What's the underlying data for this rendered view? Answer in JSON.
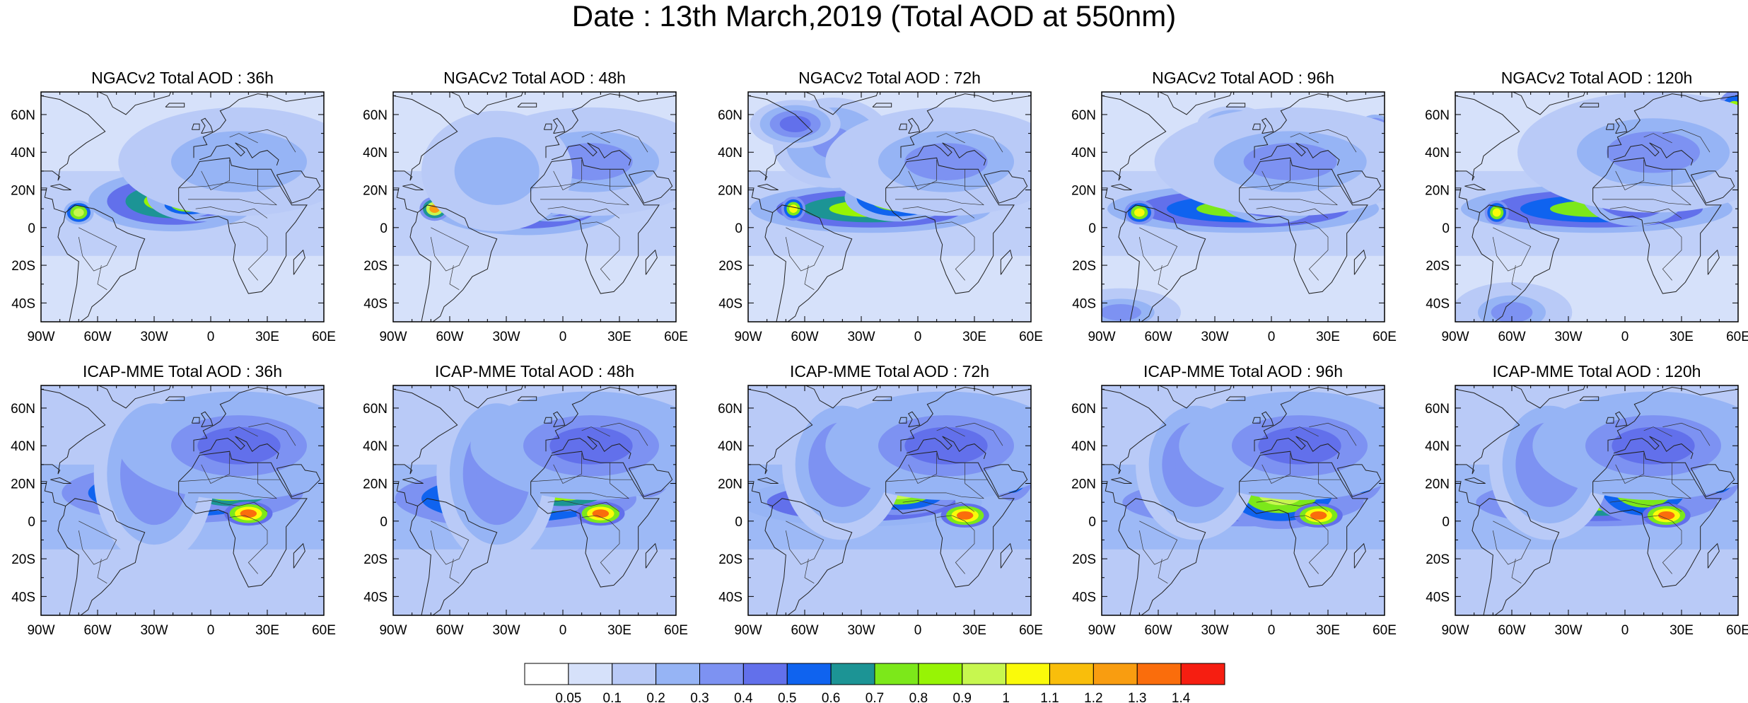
{
  "title": "Date : 13th March,2019 (Total AOD at 550nm)",
  "panels": [
    {
      "title": "NGACv2 Total AOD : 36h",
      "model": "NGACv2",
      "lead": "36h",
      "plumes": [
        [
          -20,
          14,
          28,
          10,
          0.8
        ],
        [
          -5,
          16,
          18,
          8,
          0.9
        ],
        [
          -12,
          12,
          10,
          4,
          0.95
        ],
        [
          -70,
          8,
          5,
          4,
          0.95
        ],
        [
          40,
          40,
          15,
          12,
          0.4
        ],
        [
          15,
          35,
          40,
          18,
          0.25
        ]
      ]
    },
    {
      "title": "NGACv2 Total AOD : 48h",
      "model": "NGACv2",
      "lead": "48h",
      "plumes": [
        [
          -20,
          12,
          32,
          10,
          0.8
        ],
        [
          -5,
          16,
          18,
          8,
          0.9
        ],
        [
          -12,
          12,
          10,
          4,
          0.9
        ],
        [
          -68,
          10,
          5,
          4,
          1.25
        ],
        [
          15,
          35,
          40,
          18,
          0.3
        ],
        [
          -35,
          30,
          25,
          20,
          0.25
        ]
      ]
    },
    {
      "title": "NGACv2 Total AOD : 72h",
      "model": "NGACv2",
      "lead": "72h",
      "plumes": [
        [
          -25,
          10,
          40,
          8,
          0.8
        ],
        [
          -10,
          16,
          18,
          8,
          0.95
        ],
        [
          -66,
          10,
          4,
          4,
          1.0
        ],
        [
          -45,
          45,
          20,
          15,
          0.35
        ],
        [
          15,
          35,
          40,
          18,
          0.3
        ],
        [
          -65,
          55,
          15,
          8,
          0.4
        ]
      ]
    },
    {
      "title": "NGACv2 Total AOD : 96h",
      "model": "NGACv2",
      "lead": "96h",
      "plumes": [
        [
          -15,
          10,
          45,
          8,
          0.75
        ],
        [
          0,
          18,
          18,
          10,
          0.85
        ],
        [
          -70,
          8,
          5,
          4,
          1.0
        ],
        [
          -20,
          55,
          12,
          6,
          0.5
        ],
        [
          55,
          52,
          6,
          5,
          0.7
        ],
        [
          10,
          35,
          45,
          18,
          0.3
        ],
        [
          -80,
          -45,
          20,
          8,
          0.3
        ]
      ]
    },
    {
      "title": "NGACv2 Total AOD : 120h",
      "model": "NGACv2",
      "lead": "120h",
      "plumes": [
        [
          -15,
          10,
          45,
          8,
          0.75
        ],
        [
          5,
          20,
          18,
          12,
          0.85
        ],
        [
          -68,
          8,
          4,
          4,
          1.0
        ],
        [
          58,
          60,
          6,
          8,
          1.05
        ],
        [
          15,
          40,
          45,
          20,
          0.3
        ],
        [
          -60,
          -45,
          20,
          10,
          0.3
        ]
      ]
    }
  ],
  "panels_icap": [
    {
      "title": "ICAP-MME Total AOD : 36h",
      "model": "ICAP-MME",
      "lead": "36h",
      "plumes": [
        [
          -15,
          15,
          40,
          10,
          0.85
        ],
        [
          10,
          18,
          18,
          8,
          1.05
        ],
        [
          20,
          4,
          8,
          4,
          1.35
        ],
        [
          42,
          35,
          10,
          12,
          1.3
        ],
        [
          -30,
          25,
          20,
          30,
          0.35
        ],
        [
          15,
          40,
          40,
          18,
          0.4
        ]
      ]
    },
    {
      "title": "ICAP-MME Total AOD : 48h",
      "model": "ICAP-MME",
      "lead": "48h",
      "plumes": [
        [
          -25,
          12,
          40,
          10,
          0.85
        ],
        [
          0,
          18,
          20,
          8,
          1.05
        ],
        [
          20,
          4,
          8,
          4,
          1.35
        ],
        [
          45,
          35,
          10,
          14,
          1.0
        ],
        [
          -35,
          25,
          20,
          30,
          0.35
        ],
        [
          15,
          40,
          40,
          18,
          0.4
        ]
      ]
    },
    {
      "title": "ICAP-MME Total AOD : 72h",
      "model": "ICAP-MME",
      "lead": "72h",
      "plumes": [
        [
          -30,
          10,
          40,
          8,
          0.7
        ],
        [
          -10,
          16,
          20,
          8,
          0.95
        ],
        [
          25,
          3,
          8,
          4,
          1.3
        ],
        [
          50,
          30,
          8,
          12,
          0.9
        ],
        [
          -40,
          30,
          20,
          25,
          0.35
        ],
        [
          15,
          40,
          40,
          18,
          0.4
        ]
      ]
    },
    {
      "title": "ICAP-MME Total AOD : 96h",
      "model": "ICAP-MME",
      "lead": "96h",
      "plumes": [
        [
          -15,
          10,
          40,
          8,
          0.75
        ],
        [
          5,
          15,
          22,
          12,
          0.95
        ],
        [
          25,
          3,
          8,
          4,
          1.35
        ],
        [
          48,
          30,
          8,
          12,
          1.0
        ],
        [
          -40,
          30,
          20,
          25,
          0.35
        ],
        [
          15,
          40,
          40,
          18,
          0.4
        ]
      ]
    },
    {
      "title": "ICAP-MME Total AOD : 120h",
      "model": "ICAP-MME",
      "lead": "120h",
      "plumes": [
        [
          -15,
          10,
          40,
          8,
          0.8
        ],
        [
          10,
          18,
          18,
          12,
          0.95
        ],
        [
          22,
          3,
          8,
          4,
          1.35
        ],
        [
          50,
          30,
          8,
          12,
          0.9
        ],
        [
          -40,
          30,
          20,
          25,
          0.35
        ],
        [
          15,
          40,
          40,
          18,
          0.4
        ]
      ]
    }
  ],
  "map": {
    "lon_range": [
      -90,
      60
    ],
    "lat_range": [
      -50,
      72
    ],
    "lon_ticks": [
      -90,
      -60,
      -30,
      0,
      30,
      60
    ],
    "lon_tick_labels": [
      "90W",
      "60W",
      "30W",
      "0",
      "30E",
      "60E"
    ],
    "lat_ticks": [
      60,
      40,
      20,
      0,
      -20,
      -40
    ],
    "lat_tick_labels": [
      "60N",
      "40N",
      "20N",
      "0",
      "20S",
      "40S"
    ]
  },
  "colorbar": {
    "levels": [
      0.05,
      0.1,
      0.2,
      0.3,
      0.4,
      0.5,
      0.6,
      0.7,
      0.8,
      0.9,
      1,
      1.1,
      1.2,
      1.3,
      1.4
    ],
    "labels": [
      "0.05",
      "0.1",
      "0.2",
      "0.3",
      "0.4",
      "0.5",
      "0.6",
      "0.7",
      "0.8",
      "0.9",
      "1",
      "1.1",
      "1.2",
      "1.3",
      "1.4"
    ],
    "colors": [
      "#ffffff",
      "#d6e1fa",
      "#b9caf7",
      "#96b4f5",
      "#7d92f2",
      "#6270eb",
      "#0f63ef",
      "#1c9495",
      "#7ce81a",
      "#97f405",
      "#c7f74f",
      "#fafa0a",
      "#f9be0b",
      "#f99d10",
      "#fa6d0c",
      "#f61e11"
    ]
  }
}
